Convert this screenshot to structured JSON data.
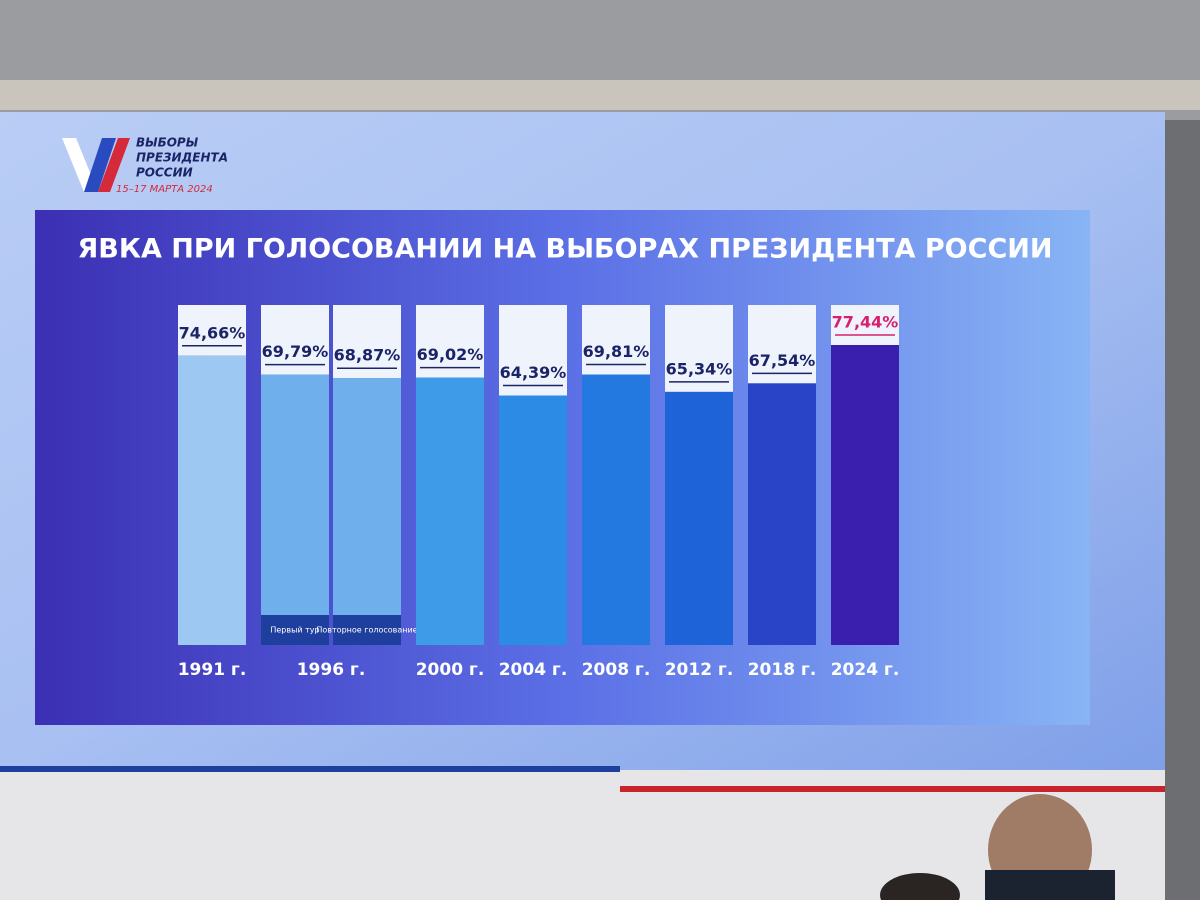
{
  "logo": {
    "lines": [
      "ВЫБОРЫ",
      "ПРЕЗИДЕНТА",
      "РОССИИ"
    ],
    "dates": "15–17 МАРТА 2024"
  },
  "chart_data": {
    "type": "bar",
    "title": "ЯВКА ПРИ ГОЛОСОВАНИИ НА ВЫБОРАХ ПРЕЗИДЕНТА РОССИИ",
    "categories": [
      "1991 г.",
      "1996 г.",
      null,
      "2000 г.",
      "2004 г.",
      "2008 г.",
      "2012 г.",
      "2018 г.",
      "2024 г."
    ],
    "bar_labels": [
      null,
      "Первый тур",
      "Повторное голосование",
      null,
      null,
      null,
      null,
      null,
      null
    ],
    "values": [
      74.66,
      69.79,
      68.87,
      69.02,
      64.39,
      69.81,
      65.34,
      67.54,
      77.44
    ],
    "value_labels": [
      "74,66%",
      "69,79%",
      "68,87%",
      "69,02%",
      "64,39%",
      "69,81%",
      "65,34%",
      "67,54%",
      "77,44%"
    ],
    "colors": [
      "#9cc8f2",
      "#6fb0ec",
      "#6fb0ec",
      "#3d9be8",
      "#2c8be4",
      "#2479e0",
      "#1f63d8",
      "#2a44c8",
      "#3a1fae"
    ],
    "label_colors": [
      "#1b2466",
      "#1b2466",
      "#1b2466",
      "#1b2466",
      "#1b2466",
      "#1b2466",
      "#1b2466",
      "#1b2466",
      "#d81e6e"
    ]
  }
}
